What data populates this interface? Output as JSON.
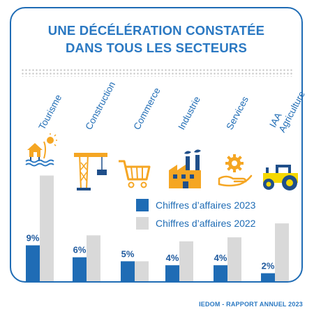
{
  "title_line1": "UNE DÉCÉLÉRATION CONSTATÉE",
  "title_line2": "DANS TOUS LES SECTEURS",
  "footer": "IEDOM - RAPPORT ANNUEL 2023",
  "legend": {
    "series_2023": "Chiffres d’affaires 2023",
    "series_2022": "Chiffres d’affaires 2022"
  },
  "colors": {
    "accent": "#2a78c2",
    "bar_2023": "#1f6cb5",
    "bar_2022": "#d9d9d9",
    "icon_orange": "#f5a623",
    "border": "#1f6cb5"
  },
  "icons": [
    "beach-bungalow-icon",
    "crane-icon",
    "shopping-cart-icon",
    "factory-icon",
    "gear-hand-icon",
    "tractor-icon"
  ],
  "chart_data": {
    "type": "bar",
    "categories": [
      "Tourisme",
      "Construction",
      "Commerce",
      "Industrie",
      "Services",
      "Agriculture IAA"
    ],
    "category_lines": [
      [
        "Tourisme"
      ],
      [
        "Construction"
      ],
      [
        "Commerce"
      ],
      [
        "Industrie"
      ],
      [
        "Services"
      ],
      [
        "Agriculture",
        "IAA"
      ]
    ],
    "series": [
      {
        "name": "Chiffres d’affaires 2023",
        "values": [
          9,
          6,
          5,
          4,
          4,
          2
        ],
        "labels": [
          "9%",
          "6%",
          "5%",
          "4%",
          "4%",
          "2%"
        ]
      },
      {
        "name": "Chiffres d’affaires 2022",
        "values": [
          26.5,
          11.5,
          5,
          10,
          11,
          14.5
        ]
      }
    ],
    "ylim": [
      0,
      28
    ],
    "legend_position": "center-right",
    "grid": false
  }
}
